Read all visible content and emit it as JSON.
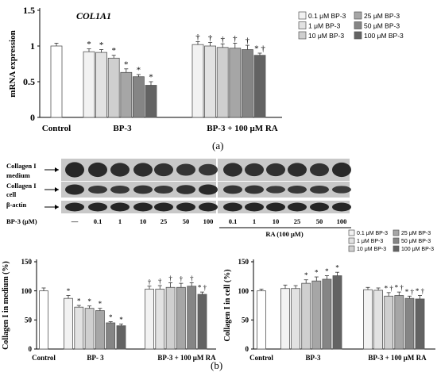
{
  "colors": {
    "bar_control": "#ffffff",
    "bar_01": "#f2f2f2",
    "bar_1": "#e2e2e2",
    "bar_10": "#cfcfcf",
    "bar_25": "#a6a6a6",
    "bar_50": "#858585",
    "bar_100": "#636363",
    "blot_background": "#c8c8c8",
    "band": "#1a1a1a"
  },
  "panels": {
    "a": "(a)",
    "b": "(b)"
  },
  "chart_data": [
    {
      "type": "bar",
      "title": "COL1A1",
      "ylabel": "mRNA expression",
      "xlabel": "",
      "ylim": [
        0,
        1.5
      ],
      "yticks": [
        "0",
        "0.5",
        "1",
        "1.5"
      ],
      "group_labels": [
        "Control",
        "BP-3",
        "BP-3 + 100 μM RA"
      ],
      "legend": [
        "0.1 μM BP-3",
        "1 μM BP-3",
        "10 μM BP-3",
        "25 μM BP-3",
        "50 μM BP-3",
        "100 μM BP-3"
      ],
      "legend_position": "top-right",
      "groups": [
        {
          "label": "Control",
          "values": [
            1.0
          ],
          "errors": [
            0.04
          ],
          "marks": [
            ""
          ]
        },
        {
          "label": "BP-3",
          "values": [
            0.92,
            0.91,
            0.83,
            0.63,
            0.57,
            0.45
          ],
          "errors": [
            0.04,
            0.04,
            0.04,
            0.05,
            0.03,
            0.05
          ],
          "marks": [
            "*",
            "*",
            "*",
            "*",
            "*",
            "*"
          ]
        },
        {
          "label": "BP-3 + 100 μM RA",
          "values": [
            1.02,
            1.0,
            0.98,
            0.97,
            0.95,
            0.87
          ],
          "errors": [
            0.04,
            0.05,
            0.05,
            0.07,
            0.06,
            0.03
          ],
          "marks": [
            "†",
            "†",
            "†",
            "†",
            "†",
            "* †"
          ]
        }
      ]
    },
    {
      "type": "bar",
      "title": "",
      "ylabel": "Collagen I in medium (%)",
      "xlabel": "",
      "ylim": [
        0,
        150
      ],
      "yticks": [
        "0",
        "50",
        "100",
        "150"
      ],
      "group_labels": [
        "Control",
        "BP- 3",
        "BP-3 + 100 μM RA"
      ],
      "legend": [],
      "groups": [
        {
          "label": "Control",
          "values": [
            100
          ],
          "errors": [
            5
          ],
          "marks": [
            ""
          ]
        },
        {
          "label": "BP- 3",
          "values": [
            87,
            72,
            70,
            66,
            45,
            40
          ],
          "errors": [
            5,
            3,
            4,
            4,
            2,
            3
          ],
          "marks": [
            "*",
            "*",
            "*",
            "*",
            "*",
            "*"
          ]
        },
        {
          "label": "BP-3 + 100 μM RA",
          "values": [
            103,
            103,
            106,
            106,
            108,
            94
          ],
          "errors": [
            5,
            6,
            8,
            7,
            6,
            4
          ],
          "marks": [
            "†",
            "†",
            "†",
            "†",
            "†",
            "* †"
          ]
        }
      ]
    },
    {
      "type": "bar",
      "title": "",
      "ylabel": "Collagen I in cell (%)",
      "xlabel": "",
      "ylim": [
        0,
        150
      ],
      "yticks": [
        "0",
        "50",
        "100",
        "150"
      ],
      "group_labels": [
        "Control",
        "BP-3",
        "BP-3 + 100 μM RA"
      ],
      "legend": [
        "0.1 μM BP-3",
        "1 μM BP-3",
        "10 μM BP-3",
        "25 μM BP-3",
        "50 μM BP-3",
        "100 μM BP-3"
      ],
      "legend_position": "top",
      "groups": [
        {
          "label": "Control",
          "values": [
            100
          ],
          "errors": [
            3
          ],
          "marks": [
            ""
          ]
        },
        {
          "label": "BP-3",
          "values": [
            104,
            104,
            113,
            117,
            120,
            126
          ],
          "errors": [
            6,
            5,
            6,
            7,
            6,
            6
          ],
          "marks": [
            "",
            "",
            "*",
            "*",
            "*",
            "*"
          ]
        },
        {
          "label": "BP-3 + 100 μM RA",
          "values": [
            102,
            101,
            91,
            92,
            87,
            86
          ],
          "errors": [
            4,
            4,
            6,
            6,
            4,
            6
          ],
          "marks": [
            "",
            "",
            "* †",
            "* †",
            "* †",
            "* †"
          ]
        }
      ]
    }
  ],
  "blot": {
    "rows": [
      {
        "label": "Collagen I\nmedium"
      },
      {
        "label": "Collagen I\ncell"
      },
      {
        "label": "β-actin"
      }
    ],
    "conc_label": "BP-3 (μM)",
    "conc_values": [
      "—",
      "0.1",
      "1",
      "10",
      "25",
      "50",
      "100",
      "0.1",
      "1",
      "10",
      "25",
      "50",
      "100"
    ],
    "ra_label": "RA (100 μM)"
  }
}
